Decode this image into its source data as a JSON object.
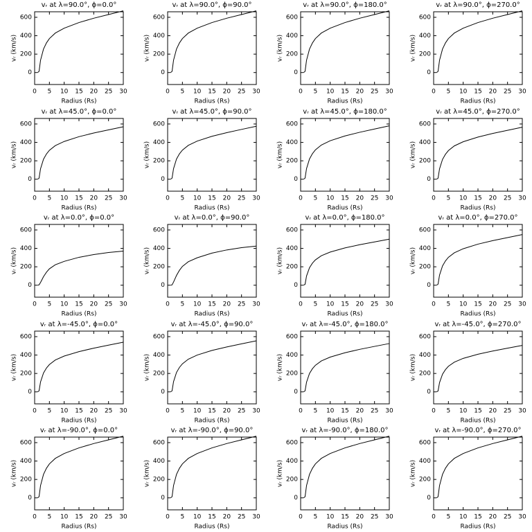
{
  "chart_data": [
    {
      "type": "line",
      "title": "vᵣ at λ=90.0°, ϕ=0.0°",
      "xlabel": "Radius (Rs)",
      "ylabel": "vᵣ (km/s)",
      "x": [
        1,
        1.5,
        2,
        3,
        4,
        5,
        7,
        10,
        15,
        20,
        25,
        30
      ],
      "values": [
        0,
        13,
        134,
        255,
        322,
        369,
        429,
        482,
        543,
        590,
        630,
        670
      ],
      "color": "#000000",
      "xlim": [
        0,
        30
      ],
      "ylim": [
        -130,
        660
      ],
      "xticks": [
        0,
        5,
        10,
        15,
        20,
        25,
        30
      ],
      "yticks": [
        0,
        200,
        400,
        600
      ]
    },
    {
      "type": "line",
      "title": "vᵣ at λ=90.0°, ϕ=90.0°",
      "xlabel": "Radius (Rs)",
      "ylabel": "vᵣ (km/s)",
      "x": [
        1,
        1.5,
        2,
        3,
        4,
        5,
        7,
        10,
        15,
        20,
        25,
        30
      ],
      "values": [
        0,
        13,
        134,
        255,
        322,
        369,
        429,
        482,
        543,
        590,
        630,
        670
      ],
      "color": "#000000",
      "xlim": [
        0,
        30
      ],
      "ylim": [
        -130,
        660
      ],
      "xticks": [
        0,
        5,
        10,
        15,
        20,
        25,
        30
      ],
      "yticks": [
        0,
        200,
        400,
        600
      ]
    },
    {
      "type": "line",
      "title": "vᵣ at λ=90.0°, ϕ=180.0°",
      "xlabel": "Radius (Rs)",
      "ylabel": "vᵣ (km/s)",
      "x": [
        1,
        1.5,
        2,
        3,
        4,
        5,
        7,
        10,
        15,
        20,
        25,
        30
      ],
      "values": [
        0,
        13,
        134,
        255,
        322,
        369,
        429,
        482,
        543,
        590,
        630,
        670
      ],
      "color": "#000000",
      "xlim": [
        0,
        30
      ],
      "ylim": [
        -130,
        660
      ],
      "xticks": [
        0,
        5,
        10,
        15,
        20,
        25,
        30
      ],
      "yticks": [
        0,
        200,
        400,
        600
      ]
    },
    {
      "type": "line",
      "title": "vᵣ at λ=90.0°, ϕ=270.0°",
      "xlabel": "Radius (Rs)",
      "ylabel": "vᵣ (km/s)",
      "x": [
        1,
        1.5,
        2,
        3,
        4,
        5,
        7,
        10,
        15,
        20,
        25,
        30
      ],
      "values": [
        0,
        13,
        134,
        255,
        322,
        369,
        429,
        482,
        543,
        590,
        630,
        670
      ],
      "color": "#000000",
      "xlim": [
        0,
        30
      ],
      "ylim": [
        -130,
        660
      ],
      "xticks": [
        0,
        5,
        10,
        15,
        20,
        25,
        30
      ],
      "yticks": [
        0,
        200,
        400,
        600
      ]
    },
    {
      "type": "line",
      "title": "vᵣ at λ=45.0°, ϕ=0.0°",
      "xlabel": "Radius (Rs)",
      "ylabel": "vᵣ (km/s)",
      "x": [
        1,
        1.5,
        2,
        3,
        4,
        5,
        7,
        10,
        15,
        20,
        25,
        30
      ],
      "values": [
        0,
        11,
        114,
        217,
        274,
        314,
        365,
        410,
        462,
        502,
        536,
        570
      ],
      "color": "#000000",
      "xlim": [
        0,
        30
      ],
      "ylim": [
        -130,
        660
      ],
      "xticks": [
        0,
        5,
        10,
        15,
        20,
        25,
        30
      ],
      "yticks": [
        0,
        200,
        400,
        600
      ]
    },
    {
      "type": "line",
      "title": "vᵣ at λ=45.0°, ϕ=90.0°",
      "xlabel": "Radius (Rs)",
      "ylabel": "vᵣ (km/s)",
      "x": [
        1,
        1.5,
        2,
        3,
        4,
        5,
        7,
        10,
        15,
        20,
        25,
        30
      ],
      "values": [
        0,
        12,
        115,
        219,
        276,
        316,
        368,
        414,
        466,
        506,
        541,
        575
      ],
      "color": "#000000",
      "xlim": [
        0,
        30
      ],
      "ylim": [
        -130,
        660
      ],
      "xticks": [
        0,
        5,
        10,
        15,
        20,
        25,
        30
      ],
      "yticks": [
        0,
        200,
        400,
        600
      ]
    },
    {
      "type": "line",
      "title": "vᵣ at λ=45.0°, ϕ=180.0°",
      "xlabel": "Radius (Rs)",
      "ylabel": "vᵣ (km/s)",
      "x": [
        1,
        1.5,
        2,
        3,
        4,
        5,
        7,
        10,
        15,
        20,
        25,
        30
      ],
      "values": [
        0,
        12,
        116,
        220,
        278,
        319,
        371,
        418,
        470,
        510,
        545,
        580
      ],
      "color": "#000000",
      "xlim": [
        0,
        30
      ],
      "ylim": [
        -130,
        660
      ],
      "xticks": [
        0,
        5,
        10,
        15,
        20,
        25,
        30
      ],
      "yticks": [
        0,
        200,
        400,
        600
      ]
    },
    {
      "type": "line",
      "title": "vᵣ at λ=45.0°, ϕ=270.0°",
      "xlabel": "Radius (Rs)",
      "ylabel": "vᵣ (km/s)",
      "x": [
        1,
        1.5,
        2,
        3,
        4,
        5,
        7,
        10,
        15,
        20,
        25,
        30
      ],
      "values": [
        0,
        11,
        113,
        215,
        271,
        311,
        362,
        407,
        458,
        497,
        531,
        565
      ],
      "color": "#000000",
      "xlim": [
        0,
        30
      ],
      "ylim": [
        -130,
        660
      ],
      "xticks": [
        0,
        5,
        10,
        15,
        20,
        25,
        30
      ],
      "yticks": [
        0,
        200,
        400,
        600
      ]
    },
    {
      "type": "line",
      "title": "vᵣ at λ=0.0°, ϕ=0.0°",
      "xlabel": "Radius (Rs)",
      "ylabel": "vᵣ (km/s)",
      "x": [
        1,
        1.5,
        2,
        3,
        4,
        5,
        7,
        10,
        15,
        20,
        25,
        30
      ],
      "values": [
        0,
        4,
        30,
        93,
        141,
        178,
        222,
        259,
        303,
        333,
        355,
        370
      ],
      "color": "#000000",
      "xlim": [
        0,
        30
      ],
      "ylim": [
        -130,
        660
      ],
      "xticks": [
        0,
        5,
        10,
        15,
        20,
        25,
        30
      ],
      "yticks": [
        0,
        200,
        400,
        600
      ]
    },
    {
      "type": "line",
      "title": "vᵣ at λ=0.0°, ϕ=90.0°",
      "xlabel": "Radius (Rs)",
      "ylabel": "vᵣ (km/s)",
      "x": [
        1,
        1.5,
        2,
        3,
        4,
        5,
        7,
        10,
        15,
        20,
        25,
        30
      ],
      "values": [
        0,
        4,
        34,
        106,
        162,
        204,
        255,
        298,
        349,
        383,
        408,
        425
      ],
      "color": "#000000",
      "xlim": [
        0,
        30
      ],
      "ylim": [
        -130,
        660
      ],
      "xticks": [
        0,
        5,
        10,
        15,
        20,
        25,
        30
      ],
      "yticks": [
        0,
        200,
        400,
        600
      ]
    },
    {
      "type": "line",
      "title": "vᵣ at λ=0.0°, ϕ=180.0°",
      "xlabel": "Radius (Rs)",
      "ylabel": "vᵣ (km/s)",
      "x": [
        1,
        1.5,
        2,
        3,
        4,
        5,
        7,
        10,
        15,
        20,
        25,
        30
      ],
      "values": [
        0,
        10,
        100,
        190,
        240,
        275,
        320,
        360,
        405,
        440,
        470,
        500
      ],
      "color": "#000000",
      "xlim": [
        0,
        30
      ],
      "ylim": [
        -130,
        660
      ],
      "xticks": [
        0,
        5,
        10,
        15,
        20,
        25,
        30
      ],
      "yticks": [
        0,
        200,
        400,
        600
      ]
    },
    {
      "type": "line",
      "title": "vᵣ at λ=0.0°, ϕ=270.0°",
      "xlabel": "Radius (Rs)",
      "ylabel": "vᵣ (km/s)",
      "x": [
        1,
        1.5,
        2,
        3,
        4,
        5,
        7,
        10,
        15,
        20,
        25,
        30
      ],
      "values": [
        0,
        11,
        110,
        209,
        264,
        303,
        352,
        396,
        446,
        484,
        517,
        550
      ],
      "color": "#000000",
      "xlim": [
        0,
        30
      ],
      "ylim": [
        -130,
        660
      ],
      "xticks": [
        0,
        5,
        10,
        15,
        20,
        25,
        30
      ],
      "yticks": [
        0,
        200,
        400,
        600
      ]
    },
    {
      "type": "line",
      "title": "vᵣ at λ=-45.0°, ϕ=0.0°",
      "xlabel": "Radius (Rs)",
      "ylabel": "vᵣ (km/s)",
      "x": [
        1,
        1.5,
        2,
        3,
        4,
        5,
        7,
        10,
        15,
        20,
        25,
        30
      ],
      "values": [
        0,
        11,
        108,
        205,
        259,
        297,
        346,
        389,
        437,
        475,
        508,
        540
      ],
      "color": "#000000",
      "xlim": [
        0,
        30
      ],
      "ylim": [
        -130,
        660
      ],
      "xticks": [
        0,
        5,
        10,
        15,
        20,
        25,
        30
      ],
      "yticks": [
        0,
        200,
        400,
        600
      ]
    },
    {
      "type": "line",
      "title": "vᵣ at λ=-45.0°, ϕ=90.0°",
      "xlabel": "Radius (Rs)",
      "ylabel": "vᵣ (km/s)",
      "x": [
        1,
        1.5,
        2,
        3,
        4,
        5,
        7,
        10,
        15,
        20,
        25,
        30
      ],
      "values": [
        0,
        11,
        111,
        211,
        266,
        305,
        355,
        400,
        450,
        488,
        522,
        555
      ],
      "color": "#000000",
      "xlim": [
        0,
        30
      ],
      "ylim": [
        -130,
        660
      ],
      "xticks": [
        0,
        5,
        10,
        15,
        20,
        25,
        30
      ],
      "yticks": [
        0,
        200,
        400,
        600
      ]
    },
    {
      "type": "line",
      "title": "vᵣ at λ=-45.0°, ϕ=180.0°",
      "xlabel": "Radius (Rs)",
      "ylabel": "vᵣ (km/s)",
      "x": [
        1,
        1.5,
        2,
        3,
        4,
        5,
        7,
        10,
        15,
        20,
        25,
        30
      ],
      "values": [
        0,
        11,
        105,
        200,
        252,
        289,
        336,
        378,
        425,
        462,
        494,
        525
      ],
      "color": "#000000",
      "xlim": [
        0,
        30
      ],
      "ylim": [
        -130,
        660
      ],
      "xticks": [
        0,
        5,
        10,
        15,
        20,
        25,
        30
      ],
      "yticks": [
        0,
        200,
        400,
        600
      ]
    },
    {
      "type": "line",
      "title": "vᵣ at λ=-45.0°, ϕ=270.0°",
      "xlabel": "Radius (Rs)",
      "ylabel": "vᵣ (km/s)",
      "x": [
        1,
        1.5,
        2,
        3,
        4,
        5,
        7,
        10,
        15,
        20,
        25,
        30
      ],
      "values": [
        0,
        10,
        101,
        192,
        242,
        278,
        323,
        364,
        409,
        444,
        475,
        505
      ],
      "color": "#000000",
      "xlim": [
        0,
        30
      ],
      "ylim": [
        -130,
        660
      ],
      "xticks": [
        0,
        5,
        10,
        15,
        20,
        25,
        30
      ],
      "yticks": [
        0,
        200,
        400,
        600
      ]
    },
    {
      "type": "line",
      "title": "vᵣ at λ=-90.0°, ϕ=0.0°",
      "xlabel": "Radius (Rs)",
      "ylabel": "vᵣ (km/s)",
      "x": [
        1,
        1.5,
        2,
        3,
        4,
        5,
        7,
        10,
        15,
        20,
        25,
        30
      ],
      "values": [
        0,
        13,
        134,
        255,
        322,
        369,
        429,
        482,
        543,
        590,
        630,
        670
      ],
      "color": "#000000",
      "xlim": [
        0,
        30
      ],
      "ylim": [
        -130,
        660
      ],
      "xticks": [
        0,
        5,
        10,
        15,
        20,
        25,
        30
      ],
      "yticks": [
        0,
        200,
        400,
        600
      ]
    },
    {
      "type": "line",
      "title": "vᵣ at λ=-90.0°, ϕ=90.0°",
      "xlabel": "Radius (Rs)",
      "ylabel": "vᵣ (km/s)",
      "x": [
        1,
        1.5,
        2,
        3,
        4,
        5,
        7,
        10,
        15,
        20,
        25,
        30
      ],
      "values": [
        0,
        13,
        134,
        255,
        322,
        369,
        429,
        482,
        543,
        590,
        630,
        670
      ],
      "color": "#000000",
      "xlim": [
        0,
        30
      ],
      "ylim": [
        -130,
        660
      ],
      "xticks": [
        0,
        5,
        10,
        15,
        20,
        25,
        30
      ],
      "yticks": [
        0,
        200,
        400,
        600
      ]
    },
    {
      "type": "line",
      "title": "vᵣ at λ=-90.0°, ϕ=180.0°",
      "xlabel": "Radius (Rs)",
      "ylabel": "vᵣ (km/s)",
      "x": [
        1,
        1.5,
        2,
        3,
        4,
        5,
        7,
        10,
        15,
        20,
        25,
        30
      ],
      "values": [
        0,
        13,
        134,
        255,
        322,
        369,
        429,
        482,
        543,
        590,
        630,
        670
      ],
      "color": "#000000",
      "xlim": [
        0,
        30
      ],
      "ylim": [
        -130,
        660
      ],
      "xticks": [
        0,
        5,
        10,
        15,
        20,
        25,
        30
      ],
      "yticks": [
        0,
        200,
        400,
        600
      ]
    },
    {
      "type": "line",
      "title": "vᵣ at λ=-90.0°, ϕ=270.0°",
      "xlabel": "Radius (Rs)",
      "ylabel": "vᵣ (km/s)",
      "x": [
        1,
        1.5,
        2,
        3,
        4,
        5,
        7,
        10,
        15,
        20,
        25,
        30
      ],
      "values": [
        0,
        13,
        134,
        255,
        322,
        369,
        429,
        482,
        543,
        590,
        630,
        670
      ],
      "color": "#000000",
      "xlim": [
        0,
        30
      ],
      "ylim": [
        -130,
        660
      ],
      "xticks": [
        0,
        5,
        10,
        15,
        20,
        25,
        30
      ],
      "yticks": [
        0,
        200,
        400,
        600
      ]
    }
  ]
}
